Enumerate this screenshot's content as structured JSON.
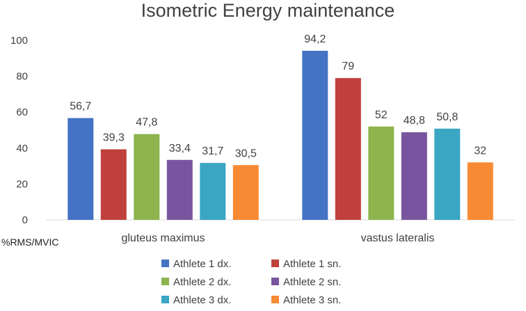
{
  "chart_data": {
    "type": "bar",
    "title": "Isometric Energy maintenance",
    "ylabel": "%RMS/MVIC",
    "xlabel": "",
    "ylim": [
      0,
      100
    ],
    "yticks": [
      0,
      20,
      40,
      60,
      80,
      100
    ],
    "categories": [
      "gluteus maximus",
      "vastus lateralis"
    ],
    "series": [
      {
        "name": "Athlete 1 dx.",
        "color": "#4472C4",
        "values": [
          56.7,
          94.2
        ],
        "labels": [
          "56,7",
          "94,2"
        ]
      },
      {
        "name": "Athlete 1 sn.",
        "color": "#C0403D",
        "values": [
          39.3,
          79
        ],
        "labels": [
          "39,3",
          "79"
        ]
      },
      {
        "name": "Athlete 2 dx.",
        "color": "#8DB44D",
        "values": [
          47.8,
          52
        ],
        "labels": [
          "47,8",
          "52"
        ]
      },
      {
        "name": "Athlete 2 sn.",
        "color": "#7A559F",
        "values": [
          33.4,
          48.8
        ],
        "labels": [
          "33,4",
          "48,8"
        ]
      },
      {
        "name": "Athlete 3 dx.",
        "color": "#3AA6C4",
        "values": [
          31.7,
          50.8
        ],
        "labels": [
          "31,7",
          "50,8"
        ]
      },
      {
        "name": "Athlete 3 sn.",
        "color": "#F98A34",
        "values": [
          30.5,
          32
        ],
        "labels": [
          "30,5",
          "32"
        ]
      }
    ],
    "grid": false,
    "legend": "bottom"
  }
}
